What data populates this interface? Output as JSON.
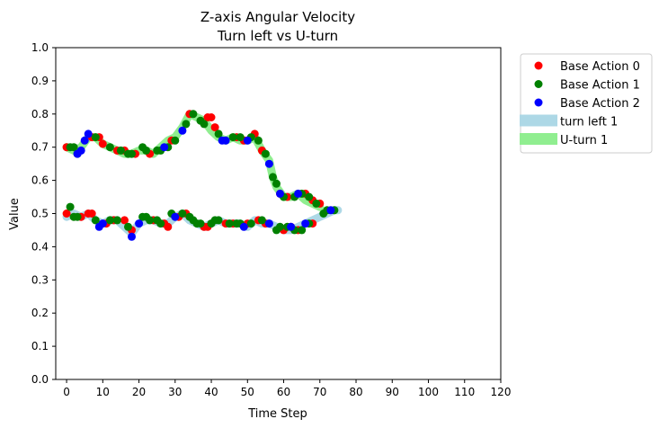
{
  "chart_data": {
    "type": "scatter",
    "title": "Z-axis Angular Velocity",
    "subtitle": "Turn left vs U-turn",
    "xlabel": "Time Step",
    "ylabel": "Value",
    "xlim": [
      -3,
      120
    ],
    "ylim": [
      0.0,
      1.0
    ],
    "xticks": [
      "0",
      "10",
      "20",
      "30",
      "40",
      "50",
      "60",
      "70",
      "80",
      "90",
      "100",
      "110",
      "120"
    ],
    "yticks": [
      "0.0",
      "0.1",
      "0.2",
      "0.3",
      "0.4",
      "0.5",
      "0.6",
      "0.7",
      "0.8",
      "0.9",
      "1.0"
    ],
    "grid": false,
    "legend_placement": "outside top-right",
    "legend": [
      {
        "label": "Base Action 0",
        "kind": "marker",
        "color": "#ff0000"
      },
      {
        "label": "Base Action 1",
        "kind": "marker",
        "color": "#008000"
      },
      {
        "label": "Base Action 2",
        "kind": "marker",
        "color": "#0000ff"
      },
      {
        "label": "turn left 1",
        "kind": "band",
        "color": "#add8e6"
      },
      {
        "label": "U-turn 1",
        "kind": "band",
        "color": "#90ee90"
      }
    ],
    "bands": [
      {
        "name": "turn left 1",
        "color": "#add8e6",
        "x": [
          0,
          2,
          4,
          6,
          8,
          10,
          12,
          14,
          16,
          18,
          20,
          22,
          24,
          26,
          28,
          30,
          32,
          34,
          36,
          38,
          40,
          42,
          44,
          46,
          48,
          50,
          52,
          54,
          56,
          58,
          60,
          62,
          64,
          66,
          68,
          70,
          72,
          74,
          75
        ],
        "y": [
          0.49,
          0.5,
          0.49,
          0.5,
          0.48,
          0.47,
          0.48,
          0.48,
          0.46,
          0.44,
          0.47,
          0.48,
          0.48,
          0.47,
          0.47,
          0.49,
          0.5,
          0.48,
          0.47,
          0.46,
          0.47,
          0.48,
          0.47,
          0.47,
          0.47,
          0.46,
          0.48,
          0.47,
          0.47,
          0.46,
          0.45,
          0.45,
          0.46,
          0.47,
          0.48,
          0.49,
          0.5,
          0.51,
          0.51
        ]
      },
      {
        "name": "U-turn 1",
        "color": "#90ee90",
        "x": [
          0,
          2,
          4,
          6,
          8,
          10,
          12,
          14,
          16,
          18,
          20,
          22,
          24,
          26,
          28,
          30,
          32,
          34,
          36,
          38,
          40,
          42,
          44,
          46,
          48,
          50,
          52,
          54,
          56,
          57,
          58,
          60,
          62,
          64,
          66,
          68,
          70
        ],
        "y": [
          0.7,
          0.69,
          0.7,
          0.73,
          0.73,
          0.71,
          0.7,
          0.69,
          0.68,
          0.68,
          0.69,
          0.69,
          0.68,
          0.7,
          0.72,
          0.73,
          0.76,
          0.8,
          0.79,
          0.78,
          0.75,
          0.73,
          0.72,
          0.73,
          0.72,
          0.72,
          0.73,
          0.69,
          0.66,
          0.61,
          0.58,
          0.55,
          0.55,
          0.56,
          0.54,
          0.53,
          0.52
        ]
      }
    ],
    "series": [
      {
        "name": "Base Action 0",
        "color": "#ff0000",
        "points": [
          [
            0,
            0.7
          ],
          [
            7,
            0.73
          ],
          [
            9,
            0.73
          ],
          [
            10,
            0.71
          ],
          [
            14,
            0.69
          ],
          [
            16,
            0.69
          ],
          [
            19,
            0.68
          ],
          [
            23,
            0.68
          ],
          [
            29,
            0.72
          ],
          [
            34,
            0.8
          ],
          [
            39,
            0.79
          ],
          [
            40,
            0.79
          ],
          [
            41,
            0.76
          ],
          [
            47,
            0.73
          ],
          [
            49,
            0.72
          ],
          [
            52,
            0.74
          ],
          [
            54,
            0.69
          ],
          [
            59,
            0.56
          ],
          [
            61,
            0.55
          ],
          [
            66,
            0.56
          ],
          [
            68,
            0.54
          ],
          [
            70,
            0.53
          ],
          [
            0,
            0.5
          ],
          [
            4,
            0.49
          ],
          [
            6,
            0.5
          ],
          [
            7,
            0.5
          ],
          [
            11,
            0.47
          ],
          [
            13,
            0.48
          ],
          [
            16,
            0.48
          ],
          [
            18,
            0.45
          ],
          [
            24,
            0.48
          ],
          [
            27,
            0.47
          ],
          [
            28,
            0.46
          ],
          [
            31,
            0.49
          ],
          [
            33,
            0.5
          ],
          [
            38,
            0.46
          ],
          [
            39,
            0.46
          ],
          [
            44,
            0.47
          ],
          [
            46,
            0.47
          ],
          [
            50,
            0.47
          ],
          [
            53,
            0.48
          ],
          [
            55,
            0.47
          ],
          [
            60,
            0.45
          ],
          [
            62,
            0.46
          ],
          [
            64,
            0.45
          ],
          [
            68,
            0.47
          ]
        ]
      },
      {
        "name": "Base Action 1",
        "color": "#008000",
        "points": [
          [
            1,
            0.7
          ],
          [
            2,
            0.7
          ],
          [
            3,
            0.68
          ],
          [
            8,
            0.73
          ],
          [
            12,
            0.7
          ],
          [
            15,
            0.69
          ],
          [
            17,
            0.68
          ],
          [
            18,
            0.68
          ],
          [
            21,
            0.7
          ],
          [
            22,
            0.69
          ],
          [
            25,
            0.69
          ],
          [
            26,
            0.69
          ],
          [
            28,
            0.7
          ],
          [
            30,
            0.72
          ],
          [
            33,
            0.77
          ],
          [
            35,
            0.8
          ],
          [
            37,
            0.78
          ],
          [
            38,
            0.77
          ],
          [
            42,
            0.74
          ],
          [
            46,
            0.73
          ],
          [
            48,
            0.73
          ],
          [
            51,
            0.73
          ],
          [
            53,
            0.72
          ],
          [
            55,
            0.68
          ],
          [
            57,
            0.61
          ],
          [
            58,
            0.59
          ],
          [
            60,
            0.55
          ],
          [
            63,
            0.55
          ],
          [
            65,
            0.56
          ],
          [
            67,
            0.55
          ],
          [
            69,
            0.53
          ],
          [
            1,
            0.52
          ],
          [
            2,
            0.49
          ],
          [
            3,
            0.49
          ],
          [
            8,
            0.48
          ],
          [
            12,
            0.48
          ],
          [
            14,
            0.48
          ],
          [
            17,
            0.46
          ],
          [
            21,
            0.49
          ],
          [
            22,
            0.49
          ],
          [
            23,
            0.48
          ],
          [
            25,
            0.48
          ],
          [
            26,
            0.47
          ],
          [
            29,
            0.5
          ],
          [
            32,
            0.5
          ],
          [
            34,
            0.49
          ],
          [
            35,
            0.48
          ],
          [
            36,
            0.47
          ],
          [
            37,
            0.47
          ],
          [
            40,
            0.47
          ],
          [
            41,
            0.48
          ],
          [
            42,
            0.48
          ],
          [
            45,
            0.47
          ],
          [
            47,
            0.47
          ],
          [
            48,
            0.47
          ],
          [
            51,
            0.47
          ],
          [
            54,
            0.48
          ],
          [
            58,
            0.45
          ],
          [
            59,
            0.46
          ],
          [
            61,
            0.46
          ],
          [
            63,
            0.45
          ],
          [
            65,
            0.45
          ],
          [
            67,
            0.47
          ],
          [
            71,
            0.5
          ],
          [
            72,
            0.51
          ],
          [
            74,
            0.51
          ]
        ]
      },
      {
        "name": "Base Action 2",
        "color": "#0000ff",
        "points": [
          [
            3,
            0.68
          ],
          [
            4,
            0.69
          ],
          [
            5,
            0.72
          ],
          [
            6,
            0.74
          ],
          [
            27,
            0.7
          ],
          [
            32,
            0.75
          ],
          [
            43,
            0.72
          ],
          [
            44,
            0.72
          ],
          [
            50,
            0.72
          ],
          [
            56,
            0.65
          ],
          [
            59,
            0.56
          ],
          [
            64,
            0.56
          ],
          [
            9,
            0.46
          ],
          [
            10,
            0.47
          ],
          [
            18,
            0.43
          ],
          [
            20,
            0.47
          ],
          [
            30,
            0.49
          ],
          [
            49,
            0.46
          ],
          [
            56,
            0.47
          ],
          [
            62,
            0.46
          ],
          [
            66,
            0.47
          ],
          [
            73,
            0.51
          ]
        ]
      }
    ]
  }
}
